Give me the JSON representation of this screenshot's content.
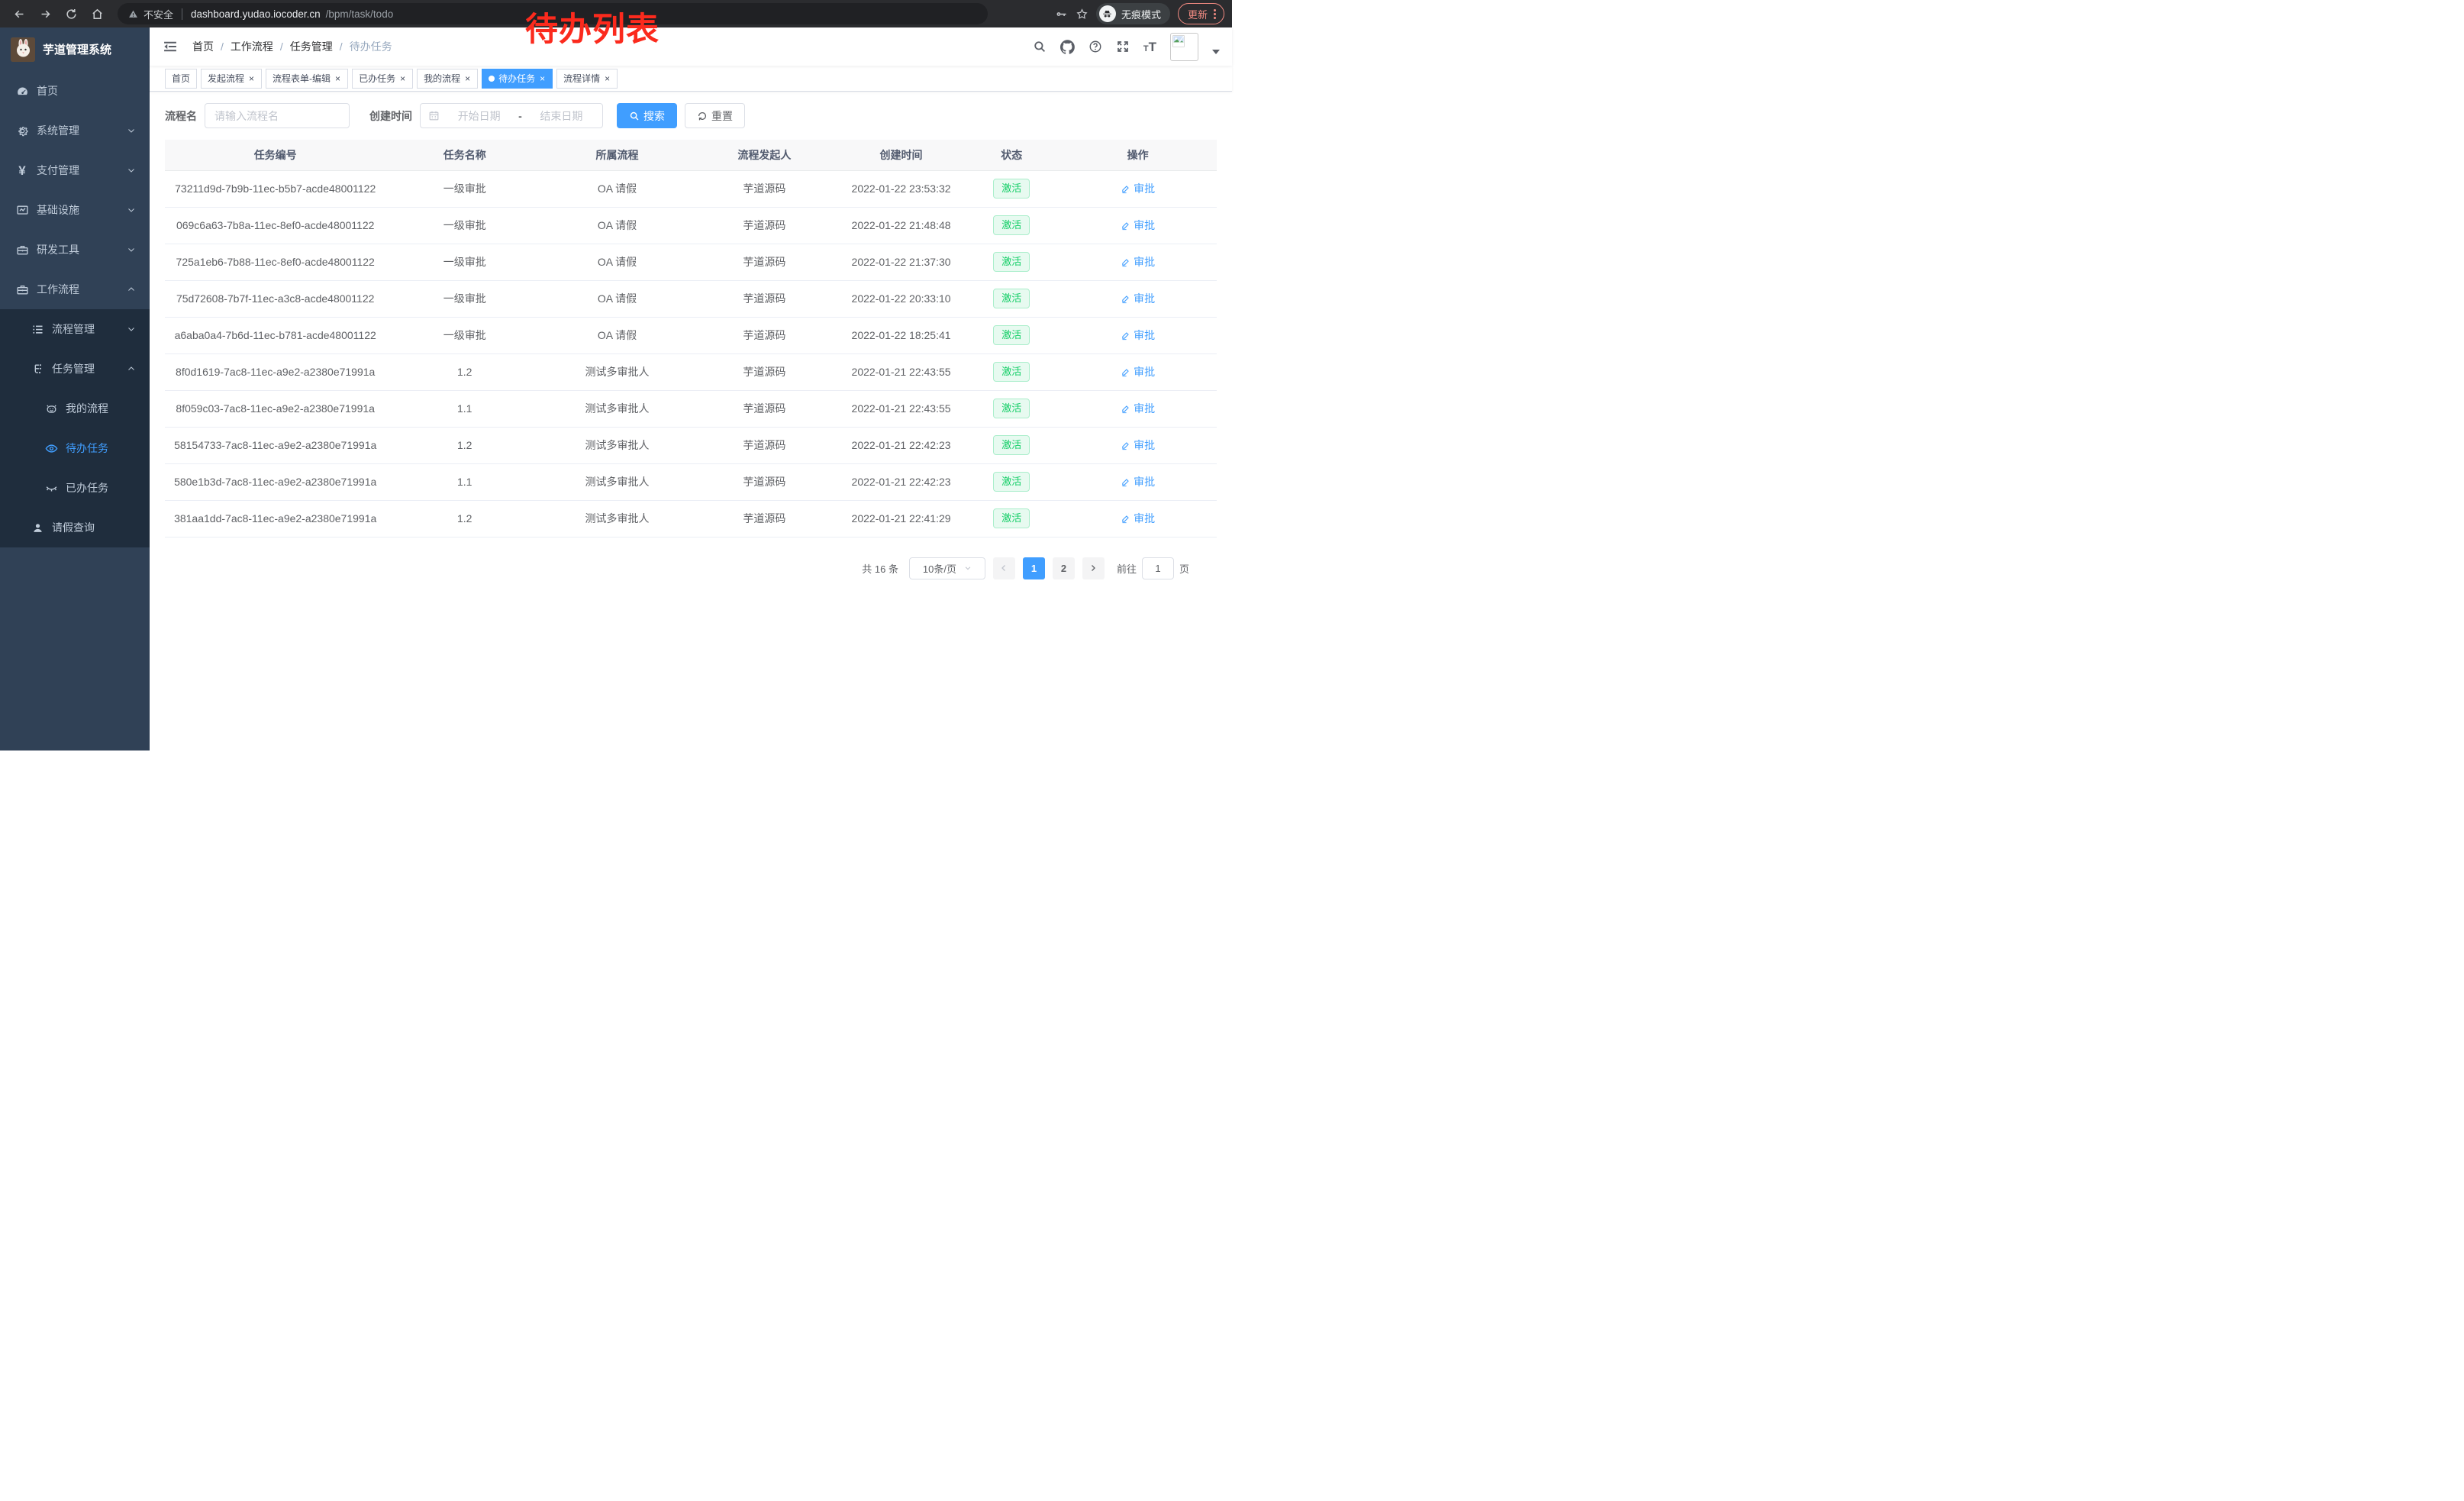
{
  "browser": {
    "security_label": "不安全",
    "url_host": "dashboard.yudao.iocoder.cn",
    "url_path": "/bpm/task/todo",
    "incognito_label": "无痕模式",
    "update_label": "更新"
  },
  "annotation": "待办列表",
  "sidebar": {
    "title": "芋道管理系统",
    "items": [
      {
        "label": "首页",
        "icon": "gauge-icon",
        "level": 1,
        "arrow": "none",
        "sub": false,
        "active": false
      },
      {
        "label": "系统管理",
        "icon": "gear-icon",
        "level": 1,
        "arrow": "down",
        "sub": false,
        "active": false
      },
      {
        "label": "支付管理",
        "icon": "yen-icon",
        "level": 1,
        "arrow": "down",
        "sub": false,
        "active": false
      },
      {
        "label": "基础设施",
        "icon": "monitor-icon",
        "level": 1,
        "arrow": "down",
        "sub": false,
        "active": false
      },
      {
        "label": "研发工具",
        "icon": "toolbox-icon",
        "level": 1,
        "arrow": "down",
        "sub": false,
        "active": false
      },
      {
        "label": "工作流程",
        "icon": "toolbox-icon",
        "level": 1,
        "arrow": "up",
        "sub": false,
        "active": false
      },
      {
        "label": "流程管理",
        "icon": "list-icon",
        "level": 2,
        "arrow": "down",
        "sub": true,
        "active": false
      },
      {
        "label": "任务管理",
        "icon": "tree-icon",
        "level": 2,
        "arrow": "up",
        "sub": true,
        "active": false
      },
      {
        "label": "我的流程",
        "icon": "robot-icon",
        "level": 3,
        "arrow": "none",
        "sub": true,
        "active": false
      },
      {
        "label": "待办任务",
        "icon": "eye-icon",
        "level": 3,
        "arrow": "none",
        "sub": true,
        "active": true
      },
      {
        "label": "已办任务",
        "icon": "eye-closed-icon",
        "level": 3,
        "arrow": "none",
        "sub": true,
        "active": false
      },
      {
        "label": "请假查询",
        "icon": "user-icon",
        "level": 2,
        "arrow": "none",
        "sub": true,
        "active": false
      }
    ]
  },
  "navbar": {
    "breadcrumb": [
      "首页",
      "工作流程",
      "任务管理",
      "待办任务"
    ]
  },
  "tabs": [
    {
      "label": "首页",
      "closable": false,
      "active": false
    },
    {
      "label": "发起流程",
      "closable": true,
      "active": false
    },
    {
      "label": "流程表单-编辑",
      "closable": true,
      "active": false
    },
    {
      "label": "已办任务",
      "closable": true,
      "active": false
    },
    {
      "label": "我的流程",
      "closable": true,
      "active": false
    },
    {
      "label": "待办任务",
      "closable": true,
      "active": true
    },
    {
      "label": "流程详情",
      "closable": true,
      "active": false
    }
  ],
  "filter": {
    "name_label": "流程名",
    "name_placeholder": "请输入流程名",
    "time_label": "创建时间",
    "start_placeholder": "开始日期",
    "separator": "-",
    "end_placeholder": "结束日期",
    "search_label": "搜索",
    "reset_label": "重置"
  },
  "table": {
    "columns": [
      "任务编号",
      "任务名称",
      "所属流程",
      "流程发起人",
      "创建时间",
      "状态",
      "操作"
    ],
    "status_label": "激活",
    "action_label": "审批",
    "rows": [
      {
        "id": "73211d9d-7b9b-11ec-b5b7-acde48001122",
        "name": "一级审批",
        "process": "OA 请假",
        "initiator": "芋道源码",
        "time": "2022-01-22 23:53:32"
      },
      {
        "id": "069c6a63-7b8a-11ec-8ef0-acde48001122",
        "name": "一级审批",
        "process": "OA 请假",
        "initiator": "芋道源码",
        "time": "2022-01-22 21:48:48"
      },
      {
        "id": "725a1eb6-7b88-11ec-8ef0-acde48001122",
        "name": "一级审批",
        "process": "OA 请假",
        "initiator": "芋道源码",
        "time": "2022-01-22 21:37:30"
      },
      {
        "id": "75d72608-7b7f-11ec-a3c8-acde48001122",
        "name": "一级审批",
        "process": "OA 请假",
        "initiator": "芋道源码",
        "time": "2022-01-22 20:33:10"
      },
      {
        "id": "a6aba0a4-7b6d-11ec-b781-acde48001122",
        "name": "一级审批",
        "process": "OA 请假",
        "initiator": "芋道源码",
        "time": "2022-01-22 18:25:41"
      },
      {
        "id": "8f0d1619-7ac8-11ec-a9e2-a2380e71991a",
        "name": "1.2",
        "process": "测试多审批人",
        "initiator": "芋道源码",
        "time": "2022-01-21 22:43:55"
      },
      {
        "id": "8f059c03-7ac8-11ec-a9e2-a2380e71991a",
        "name": "1.1",
        "process": "测试多审批人",
        "initiator": "芋道源码",
        "time": "2022-01-21 22:43:55"
      },
      {
        "id": "58154733-7ac8-11ec-a9e2-a2380e71991a",
        "name": "1.2",
        "process": "测试多审批人",
        "initiator": "芋道源码",
        "time": "2022-01-21 22:42:23"
      },
      {
        "id": "580e1b3d-7ac8-11ec-a9e2-a2380e71991a",
        "name": "1.1",
        "process": "测试多审批人",
        "initiator": "芋道源码",
        "time": "2022-01-21 22:42:23"
      },
      {
        "id": "381aa1dd-7ac8-11ec-a9e2-a2380e71991a",
        "name": "1.2",
        "process": "测试多审批人",
        "initiator": "芋道源码",
        "time": "2022-01-21 22:41:29"
      }
    ]
  },
  "pagination": {
    "total": "共 16 条",
    "page_size": "10条/页",
    "pages": [
      "1",
      "2"
    ],
    "active_page": "1",
    "goto_label": "前往",
    "goto_value": "1",
    "goto_suffix": "页"
  },
  "colors": {
    "primary": "#409eff",
    "sidebar_bg": "#304156",
    "submenu_bg": "#1f2d3d",
    "sidebar_text": "#bfcbd9",
    "success_text": "#13ce66",
    "success_bg": "#e7faf0",
    "annotation_red": "#fb2a1d"
  }
}
